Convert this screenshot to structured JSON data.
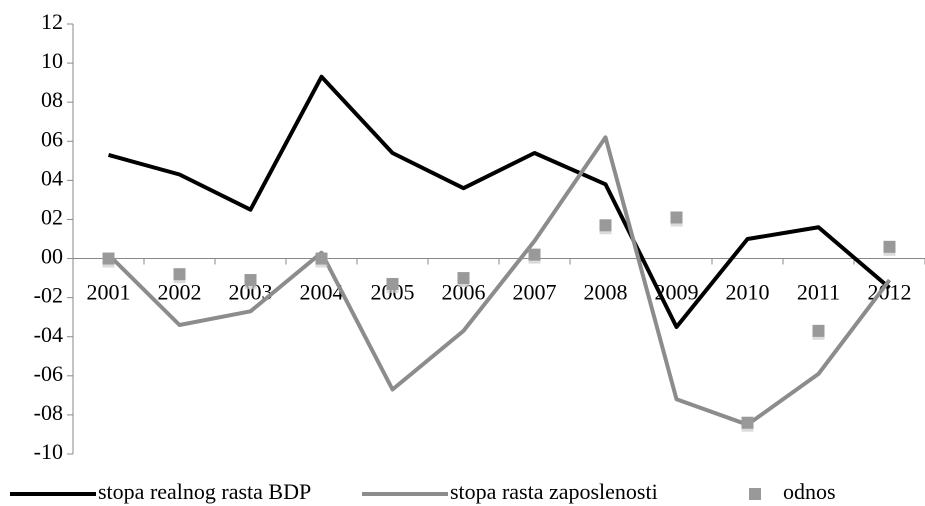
{
  "chart_data": {
    "type": "line",
    "categories": [
      "2001",
      "2002",
      "2003",
      "2004",
      "2005",
      "2006",
      "2007",
      "2008",
      "2009",
      "2010",
      "2011",
      "2012"
    ],
    "series": [
      {
        "name": "stopa realnog rasta BDP",
        "color": "#000000",
        "mode": "line",
        "values": [
          5.3,
          4.3,
          2.5,
          9.3,
          5.4,
          3.6,
          5.4,
          3.8,
          -3.5,
          1.0,
          1.6,
          -1.5
        ]
      },
      {
        "name": "stopa rasta zaposlenosti",
        "color": "#8c8c8c",
        "mode": "line",
        "values": [
          0.2,
          -3.4,
          -2.7,
          0.3,
          -6.7,
          -3.7,
          0.9,
          6.2,
          -7.2,
          -8.5,
          -5.9,
          -1.1
        ]
      },
      {
        "name": "odnos",
        "color": "#999999",
        "mode": "markers",
        "values": [
          0.0,
          -0.8,
          -1.1,
          0.0,
          -1.3,
          -1.0,
          0.2,
          1.7,
          2.1,
          -8.4,
          -3.7,
          0.6
        ]
      }
    ],
    "ylim": [
      -10,
      12
    ],
    "yticks": [
      12,
      10,
      {
        "value": 8,
        "label": "08"
      },
      {
        "value": 6,
        "label": "06"
      },
      {
        "value": 4,
        "label": "04"
      },
      {
        "value": 2,
        "label": "02"
      },
      {
        "value": 0,
        "label": "00"
      },
      {
        "value": -2,
        "label": "-02"
      },
      {
        "value": -4,
        "label": "-04"
      },
      {
        "value": -6,
        "label": "-06"
      },
      {
        "value": -8,
        "label": "-08"
      },
      -10
    ],
    "grid": false,
    "legend": "bottom"
  }
}
